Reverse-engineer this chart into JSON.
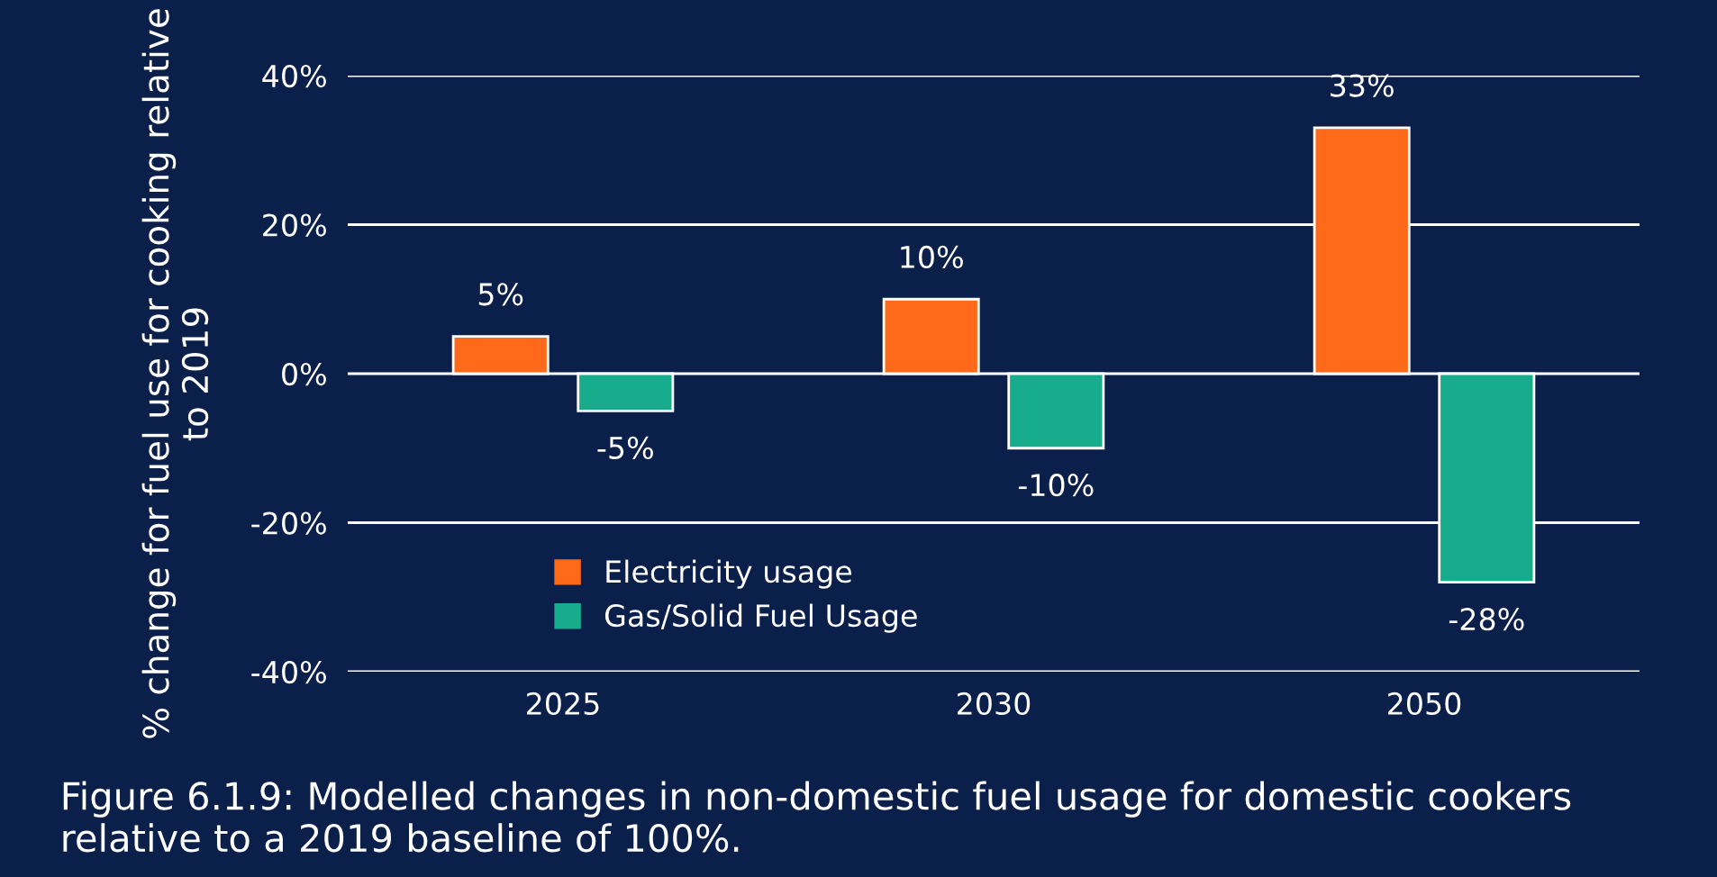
{
  "chart_data": {
    "type": "bar",
    "categories": [
      "2025",
      "2030",
      "2050"
    ],
    "series": [
      {
        "name": "Electricity usage",
        "color": "#ff6a1a",
        "values": [
          5,
          10,
          33
        ],
        "value_labels": [
          "5%",
          "10%",
          "33%"
        ]
      },
      {
        "name": "Gas/Solid Fuel Usage",
        "color": "#17ad8c",
        "values": [
          -5,
          -10,
          -28
        ],
        "value_labels": [
          "-5%",
          "-10%",
          "-28%"
        ]
      }
    ],
    "ylabel": "% change for fuel use for cooking relative to 2019",
    "ylim": [
      -40,
      40
    ],
    "yticks": [
      {
        "value": -40,
        "label": "-40%"
      },
      {
        "value": -20,
        "label": "-20%"
      },
      {
        "value": 0,
        "label": "0%"
      },
      {
        "value": 20,
        "label": "20%"
      },
      {
        "value": 40,
        "label": "40%"
      }
    ],
    "grid": "y",
    "legend": "bottom left",
    "annotations": [
      "Figure 6.1.9: Modelled changes in non-domestic fuel usage for domestic cookers relative to a 2019 baseline of 100%."
    ]
  }
}
